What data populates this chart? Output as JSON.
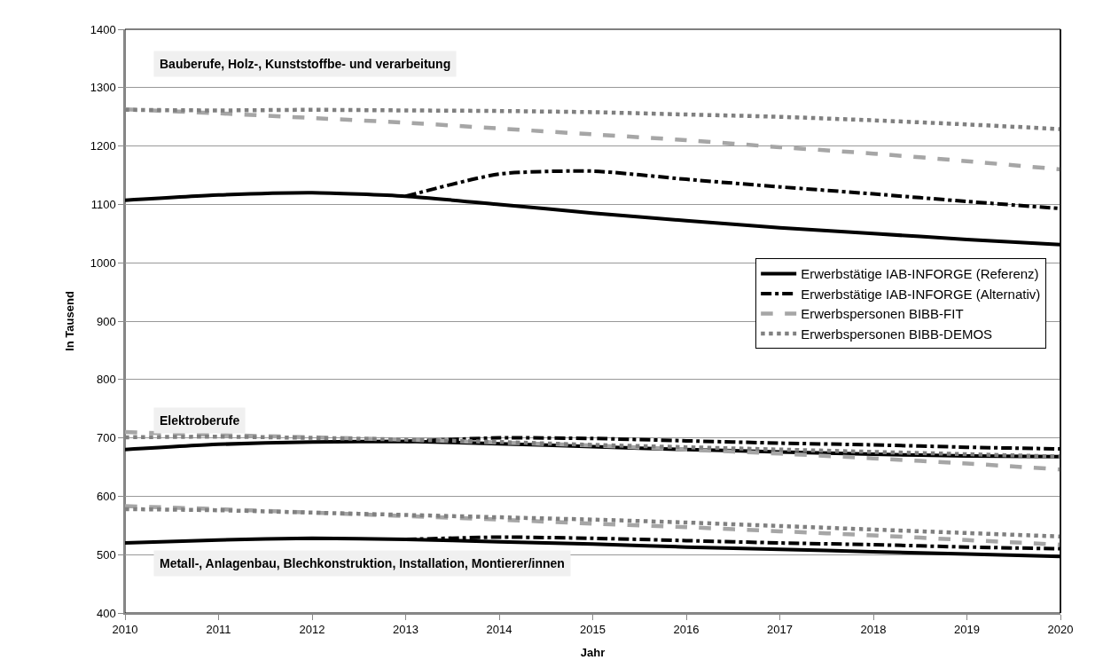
{
  "chart_data": {
    "type": "line",
    "xlabel": "Jahr",
    "ylabel": "In Tausend",
    "x": [
      2010,
      2011,
      2012,
      2013,
      2014,
      2015,
      2016,
      2017,
      2018,
      2019,
      2020
    ],
    "xlim": [
      2010,
      2020
    ],
    "xticks": [
      2010,
      2011,
      2012,
      2013,
      2014,
      2015,
      2016,
      2017,
      2018,
      2019,
      2020
    ],
    "ylim": [
      400,
      1400
    ],
    "yticks": [
      400,
      500,
      600,
      700,
      800,
      900,
      1000,
      1100,
      1200,
      1300,
      1400
    ],
    "grid": "y",
    "legend": "right",
    "marker": "none",
    "annotations": [
      "Bauberufe, Holz-, Kunststoffbe- und verarbeitung",
      "Elektroberufe",
      "Metall-, Anlagenbau, Blechkonstruktion, Installation, Montierer/innen"
    ],
    "series": [
      {
        "name": "Erwerbstätige IAB-INFORGE (Referenz)",
        "color": "#000000",
        "line_style": "solid",
        "values": [
          1107,
          1116,
          1120,
          1114,
          1100,
          1085,
          1072,
          1060,
          1050,
          1040,
          1031
        ]
      },
      {
        "name": "Erwerbstätige IAB-INFORGE (Alternativ)",
        "color": "#000000",
        "line_style": "dashdot",
        "values": [
          null,
          null,
          null,
          1114,
          1152,
          1157,
          1143,
          1130,
          1118,
          1105,
          1093
        ]
      },
      {
        "name": "Erwerbspersonen BIBB-FIT",
        "color": "#a6a6a6",
        "line_style": "dashed",
        "values": [
          1263,
          1256,
          1248,
          1240,
          1230,
          1220,
          1210,
          1198,
          1187,
          1174,
          1160
        ]
      },
      {
        "name": "Erwerbspersonen BIBB-DEMOS",
        "color": "#808080",
        "line_style": "dotted",
        "values": [
          1262,
          1261,
          1262,
          1261,
          1260,
          1258,
          1254,
          1250,
          1244,
          1237,
          1229
        ]
      },
      {
        "color": "#000000",
        "line_style": "solid",
        "values": [
          680,
          689,
          693,
          694,
          690,
          685,
          680,
          676,
          672,
          669,
          668
        ]
      },
      {
        "color": "#000000",
        "line_style": "dashdot",
        "values": [
          null,
          null,
          null,
          694,
          700,
          699,
          695,
          691,
          688,
          684,
          681
        ]
      },
      {
        "color": "#a6a6a6",
        "line_style": "dashed",
        "values": [
          710,
          705,
          701,
          697,
          692,
          687,
          680,
          673,
          665,
          656,
          646
        ]
      },
      {
        "color": "#808080",
        "line_style": "dotted",
        "values": [
          701,
          702,
          700,
          697,
          693,
          688,
          684,
          680,
          676,
          672,
          668
        ]
      },
      {
        "color": "#000000",
        "line_style": "solid",
        "values": [
          520,
          525,
          528,
          526,
          522,
          518,
          513,
          509,
          505,
          501,
          497
        ]
      },
      {
        "color": "#000000",
        "line_style": "dashdot",
        "values": [
          null,
          null,
          null,
          526,
          530,
          528,
          524,
          520,
          517,
          513,
          510
        ]
      },
      {
        "color": "#a6a6a6",
        "line_style": "dashed",
        "values": [
          583,
          578,
          572,
          566,
          560,
          553,
          547,
          540,
          533,
          525,
          517
        ]
      },
      {
        "color": "#808080",
        "line_style": "dotted",
        "values": [
          578,
          576,
          572,
          568,
          564,
          560,
          555,
          549,
          543,
          537,
          531
        ]
      }
    ]
  }
}
